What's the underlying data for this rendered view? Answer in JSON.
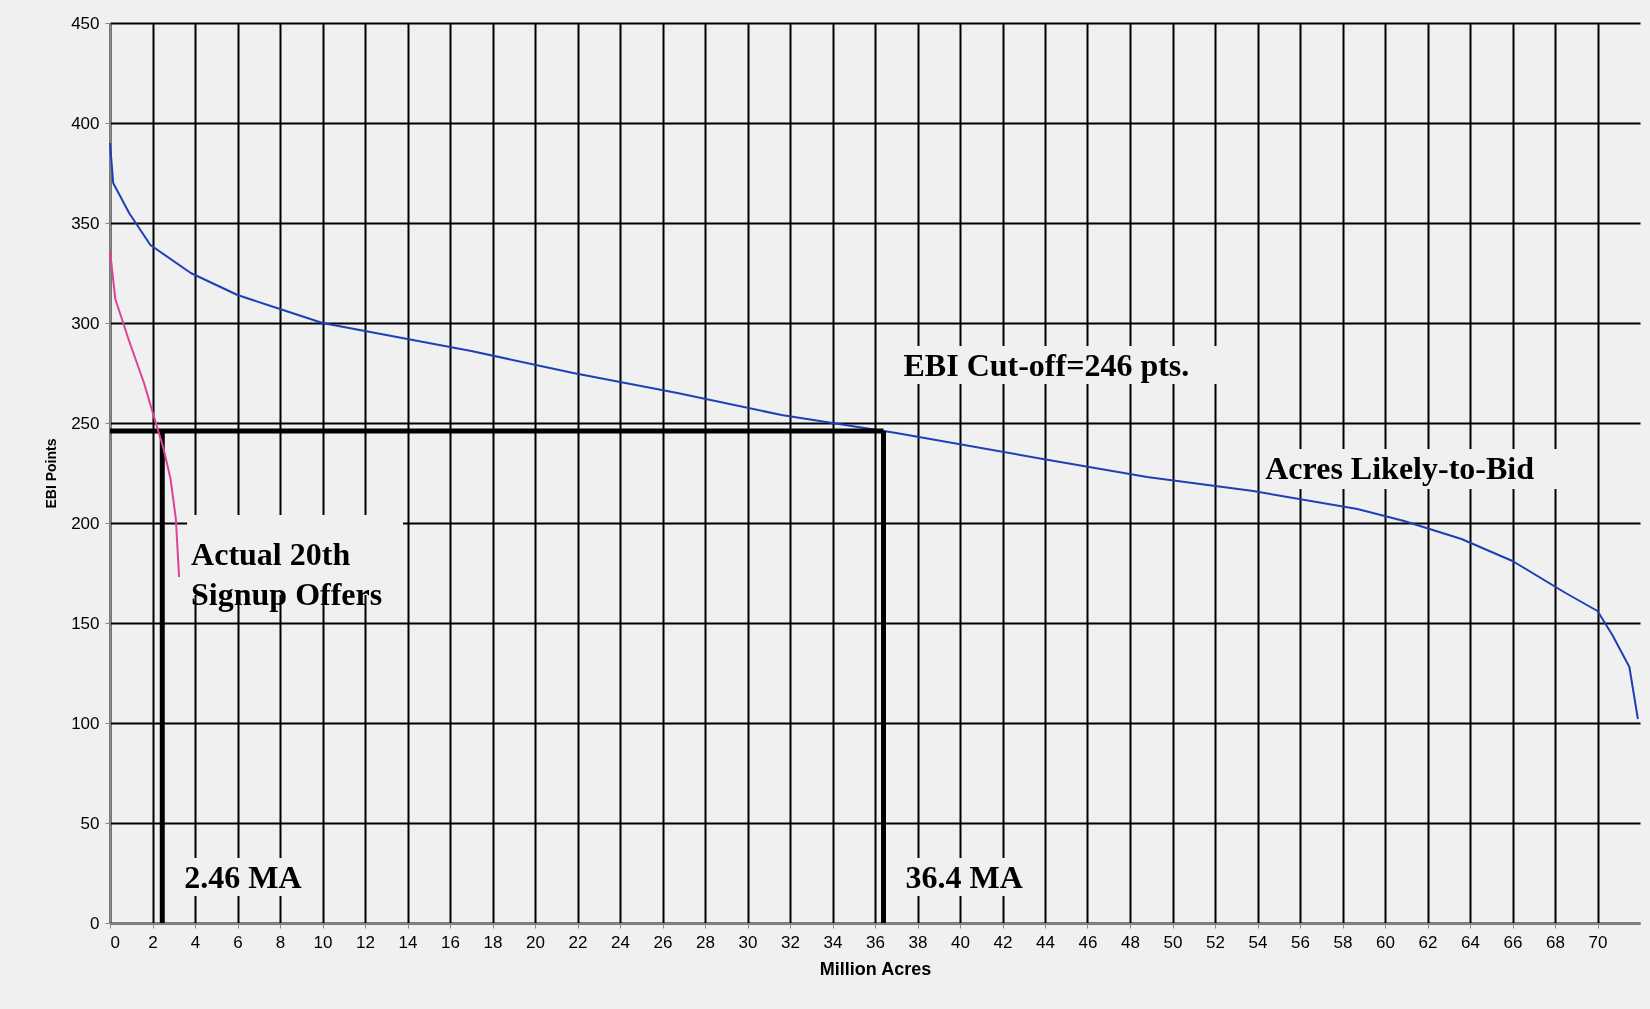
{
  "chart_data": {
    "type": "line",
    "xlabel": "Million Acres",
    "ylabel": "EBI Points",
    "xlim": [
      0,
      72
    ],
    "xticks": [
      0,
      2,
      4,
      6,
      8,
      10,
      12,
      14,
      16,
      18,
      20,
      22,
      24,
      26,
      28,
      30,
      32,
      34,
      36,
      38,
      40,
      42,
      44,
      46,
      48,
      50,
      52,
      54,
      56,
      58,
      60,
      62,
      64,
      66,
      68,
      70
    ],
    "ylim": [
      0,
      450
    ],
    "yticks": [
      0,
      50,
      100,
      150,
      200,
      250,
      300,
      350,
      400,
      450
    ],
    "grid": true,
    "series": [
      {
        "name": "Acres Likely-to-Bid",
        "color": "#1f3fb4",
        "x": [
          0,
          0.15,
          0.9,
          1.9,
          3.8,
          6,
          8,
          10,
          12,
          17,
          21.8,
          26.7,
          31.6,
          37,
          43.9,
          48.8,
          53.8,
          58.7,
          60.9,
          63.6,
          66,
          68.5,
          70,
          70.7,
          71.5,
          71.9
        ],
        "values": [
          390,
          370,
          355,
          339,
          325,
          314,
          307,
          300,
          296,
          286,
          275,
          265,
          254,
          245,
          232,
          223,
          216,
          207,
          201,
          192,
          181,
          165,
          156,
          144,
          128,
          102
        ]
      },
      {
        "name": "Actual 20th\nSignup Offers",
        "color": "#e0409a",
        "x": [
          0,
          0.25,
          0.9,
          1.6,
          2.1,
          2.5,
          2.85,
          3.1,
          3.25
        ],
        "values": [
          336,
          312,
          291,
          270,
          252,
          238,
          222,
          202,
          173
        ]
      }
    ],
    "ref_lines": [
      {
        "axis": "y",
        "value": 246,
        "label": "EBI Cut-off=246 pts.",
        "color": "#000000"
      },
      {
        "axis": "x",
        "value": 2.46,
        "label": "2.46 MA",
        "color": "#000000"
      },
      {
        "axis": "x",
        "value": 36.4,
        "label": "36.4 MA",
        "color": "#000000"
      }
    ]
  }
}
